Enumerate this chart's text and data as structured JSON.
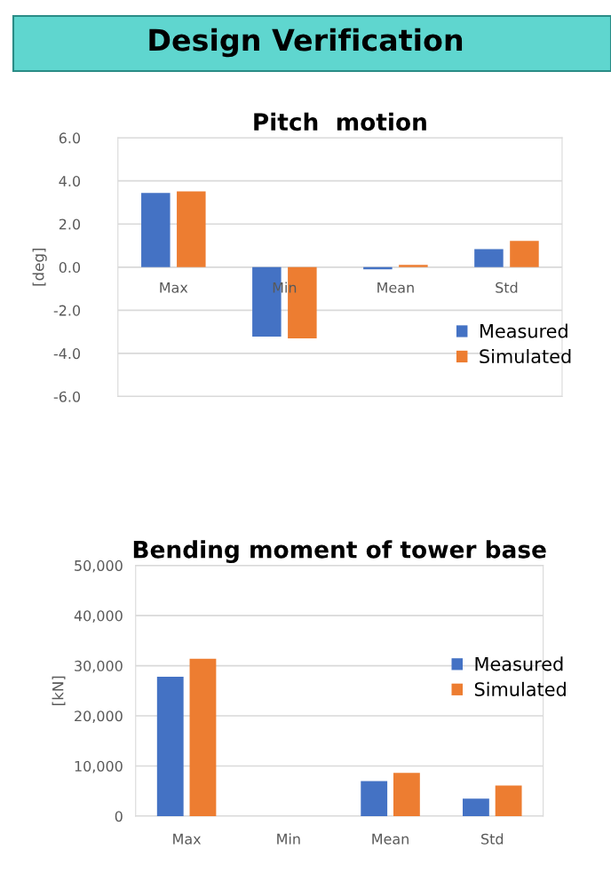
{
  "chart_data": [
    {
      "type": "bar",
      "title": "Pitch  motion",
      "ylabel": "[deg]",
      "annotations": [
        "Design Verification"
      ],
      "categories": [
        "Max",
        "Min",
        "Mean",
        "Std"
      ],
      "series": [
        {
          "name": "Measured",
          "color": "#4472c4",
          "values": [
            3.44,
            -3.22,
            -0.1,
            0.84
          ]
        },
        {
          "name": "Simulated",
          "color": "#ed7d31",
          "values": [
            3.51,
            -3.3,
            0.1,
            1.22
          ]
        }
      ],
      "ylim": [
        -6,
        6
      ],
      "yticks": [
        {
          "value": -6,
          "label": "-6.0"
        },
        {
          "value": -4,
          "label": "-4.0"
        },
        {
          "value": -2,
          "label": "-2.0"
        },
        {
          "value": 0,
          "label": "0.0"
        },
        {
          "value": 2,
          "label": "2.0"
        },
        {
          "value": 4,
          "label": "4.0"
        },
        {
          "value": 6,
          "label": "6.0"
        }
      ],
      "grid": "y",
      "legend": "bottom right"
    },
    {
      "type": "bar",
      "title": "Bending moment of tower base",
      "ylabel": "[kN]",
      "categories": [
        "Max",
        "Min",
        "Mean",
        "Std"
      ],
      "series": [
        {
          "name": "Measured",
          "color": "#4472c4",
          "values": [
            27800,
            0,
            7000,
            3500
          ]
        },
        {
          "name": "Simulated",
          "color": "#ed7d31",
          "values": [
            31400,
            0,
            8600,
            6100
          ]
        }
      ],
      "ylim": [
        0,
        50000
      ],
      "yticks": [
        {
          "value": 0,
          "label": "0"
        },
        {
          "value": 10000,
          "label": "10,000"
        },
        {
          "value": 20000,
          "label": "20,000"
        },
        {
          "value": 30000,
          "label": "30,000"
        },
        {
          "value": 40000,
          "label": "40,000"
        },
        {
          "value": 50000,
          "label": "50,000"
        }
      ],
      "grid": "y",
      "legend": "right"
    }
  ]
}
